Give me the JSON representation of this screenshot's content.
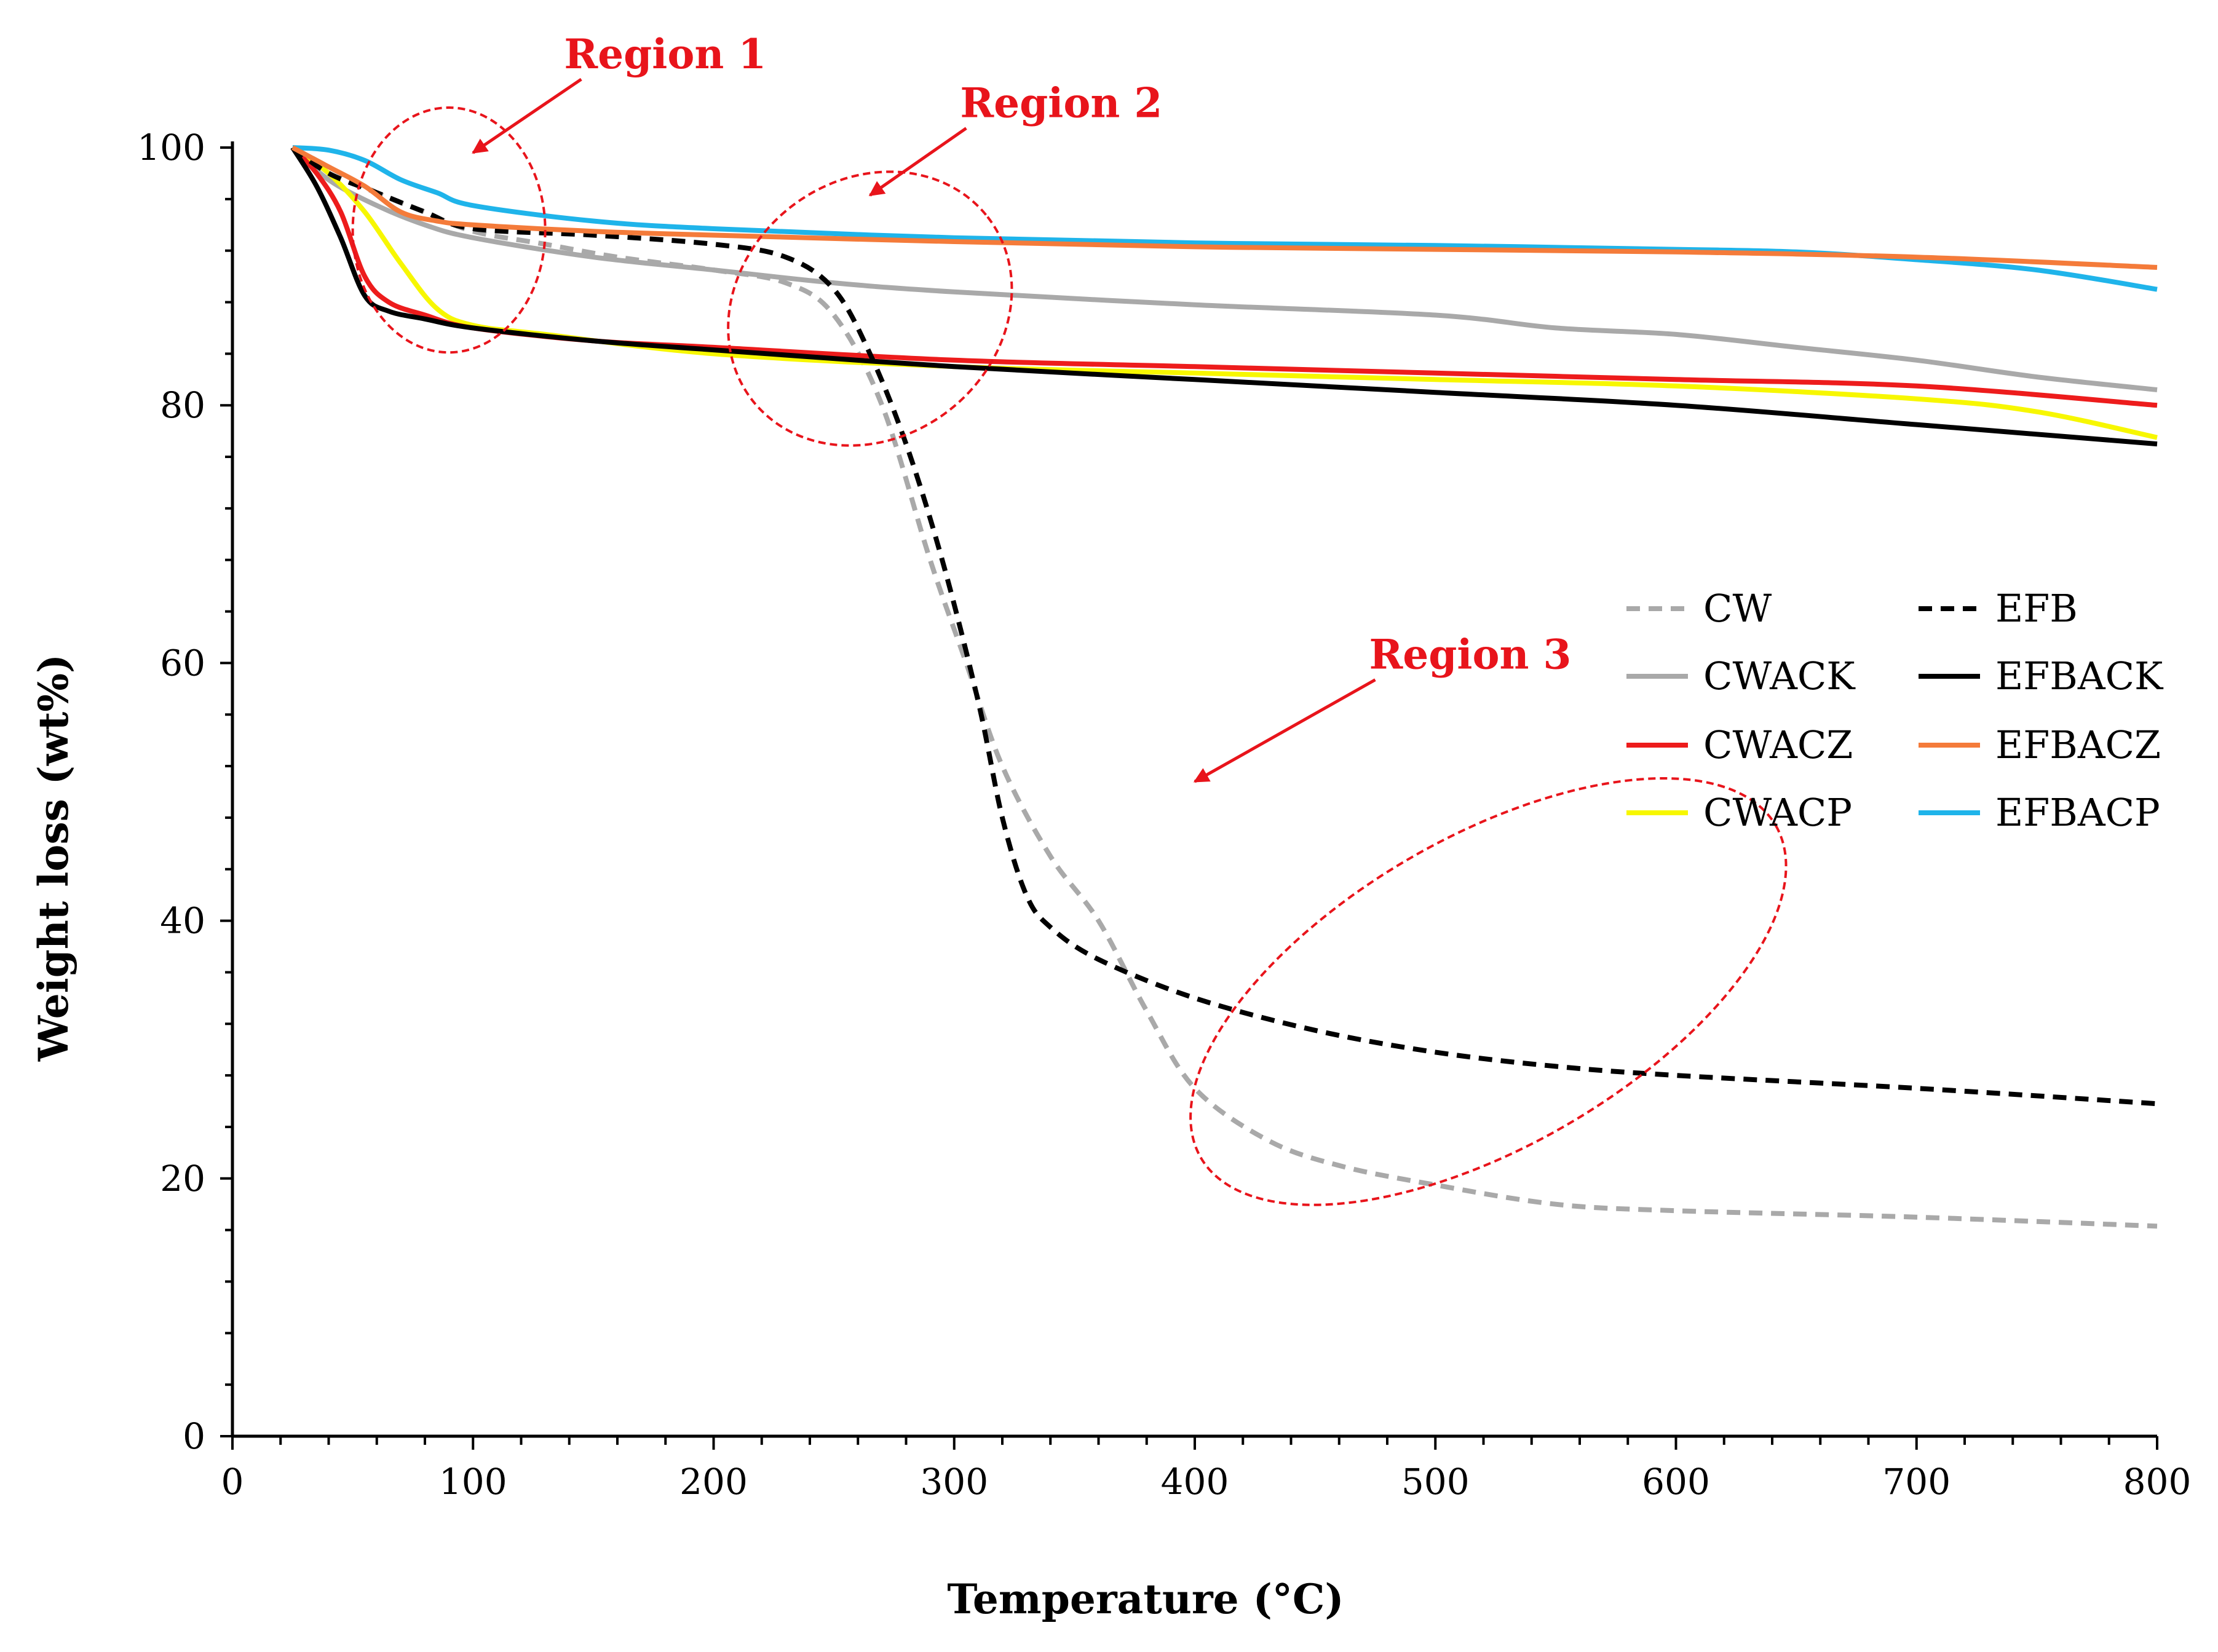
{
  "chart_data": {
    "type": "line",
    "title": "",
    "xlabel": "Temperature (°C)",
    "ylabel": "Weight loss (wt%)",
    "xlim": [
      0,
      800
    ],
    "ylim": [
      0,
      100
    ],
    "x_ticks": [
      "0",
      "100",
      "200",
      "300",
      "400",
      "500",
      "600",
      "700",
      "800"
    ],
    "y_ticks": [
      "0",
      "20",
      "40",
      "60",
      "80",
      "100"
    ],
    "grid": false,
    "legend_position": "center-right",
    "series": [
      {
        "name": "CW",
        "color": "#a9a9a9",
        "dashed": true,
        "x": [
          25,
          40,
          60,
          80,
          100,
          130,
          160,
          200,
          230,
          250,
          270,
          290,
          305,
          320,
          340,
          360,
          380,
          400,
          430,
          460,
          500,
          550,
          600,
          700,
          800
        ],
        "y": [
          100,
          98.5,
          96.5,
          95,
          93.5,
          92.5,
          91.5,
          90.5,
          89.5,
          87,
          80,
          68,
          60,
          52,
          45,
          40,
          33,
          27,
          23,
          21,
          19.5,
          18,
          17.5,
          17,
          16.3
        ]
      },
      {
        "name": "CWACK",
        "color": "#a9a9a9",
        "dashed": false,
        "x": [
          25,
          40,
          60,
          80,
          100,
          150,
          200,
          250,
          300,
          400,
          500,
          550,
          600,
          650,
          700,
          750,
          800
        ],
        "y": [
          100,
          97.5,
          95.5,
          94,
          93,
          91.5,
          90.5,
          89.5,
          88.8,
          87.8,
          87,
          86,
          85.5,
          84.5,
          83.5,
          82.2,
          81.2
        ]
      },
      {
        "name": "CWACZ",
        "color": "#ed1c1c",
        "dashed": false,
        "x": [
          25,
          35,
          45,
          55,
          65,
          80,
          100,
          150,
          200,
          300,
          400,
          500,
          600,
          700,
          800
        ],
        "y": [
          100,
          98,
          95,
          90,
          88,
          87,
          86,
          85,
          84.5,
          83.5,
          83,
          82.5,
          82,
          81.5,
          80
        ]
      },
      {
        "name": "CWACP",
        "color": "#f7f700",
        "dashed": false,
        "x": [
          25,
          40,
          55,
          70,
          85,
          100,
          130,
          200,
          300,
          400,
          500,
          600,
          700,
          750,
          800
        ],
        "y": [
          100,
          98,
          95,
          91,
          87.5,
          86.2,
          85.5,
          84,
          83,
          82.5,
          82,
          81.5,
          80.5,
          79.5,
          77.5
        ]
      },
      {
        "name": "EFB",
        "color": "#000000",
        "dashed": true,
        "x": [
          25,
          40,
          60,
          80,
          100,
          150,
          200,
          230,
          250,
          265,
          280,
          295,
          310,
          320,
          330,
          340,
          360,
          400,
          450,
          500,
          550,
          600,
          700,
          800
        ],
        "y": [
          100,
          98,
          96.5,
          95,
          93.7,
          93.2,
          92.5,
          91.5,
          89,
          84,
          77,
          68,
          57,
          48,
          42,
          39.5,
          37,
          34,
          31.5,
          29.8,
          28.7,
          28,
          27,
          25.8
        ]
      },
      {
        "name": "EFBACK",
        "color": "#000000",
        "dashed": false,
        "x": [
          25,
          35,
          45,
          55,
          65,
          80,
          100,
          150,
          200,
          300,
          400,
          500,
          600,
          700,
          800
        ],
        "y": [
          100,
          97,
          93,
          88.5,
          87.3,
          86.7,
          86,
          85,
          84.3,
          83,
          82,
          81,
          80,
          78.5,
          77
        ]
      },
      {
        "name": "EFBACZ",
        "color": "#f47b3a",
        "dashed": false,
        "x": [
          25,
          40,
          55,
          70,
          85,
          100,
          150,
          200,
          300,
          400,
          500,
          600,
          700,
          800
        ],
        "y": [
          100,
          98.5,
          97,
          95,
          94.3,
          94,
          93.5,
          93.2,
          92.7,
          92.3,
          92.1,
          91.9,
          91.5,
          90.7
        ]
      },
      {
        "name": "EFBACP",
        "color": "#1fb4ea",
        "dashed": false,
        "x": [
          25,
          40,
          55,
          70,
          85,
          100,
          150,
          200,
          300,
          400,
          500,
          600,
          650,
          700,
          750,
          800
        ],
        "y": [
          100,
          99.8,
          99,
          97.5,
          96.5,
          95.5,
          94.3,
          93.7,
          93,
          92.6,
          92.4,
          92.1,
          91.9,
          91.3,
          90.5,
          89
        ]
      }
    ],
    "annotations": [
      {
        "label": "Region 1",
        "center": [
          90,
          93.6
        ],
        "radius_x": 40,
        "radius_y": 9.5,
        "arrow_from": [
          145,
          105.3
        ],
        "arrow_to": [
          100,
          99.6
        ]
      },
      {
        "label": "Region 2",
        "center": [
          265,
          87.5
        ],
        "radius_x": 62,
        "radius_y": 10,
        "arrow_from": [
          305,
          101.5
        ],
        "arrow_to": [
          265,
          96.3
        ]
      },
      {
        "label": "Region 3",
        "center": [
          522,
          34.5
        ],
        "radius_x": 138,
        "radius_y": 12,
        "arrow_from": [
          475,
          58.7
        ],
        "arrow_to": [
          400,
          50.8
        ]
      }
    ]
  }
}
